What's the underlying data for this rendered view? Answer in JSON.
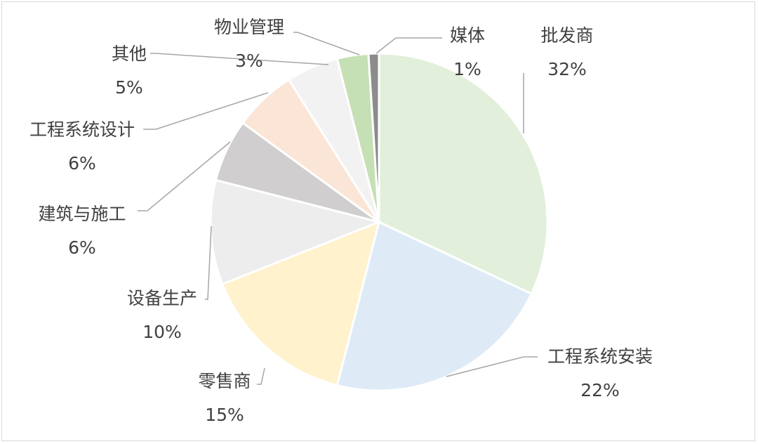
{
  "chart_data": {
    "type": "pie",
    "title": "",
    "slices": [
      {
        "label": "批发商",
        "value": 32,
        "percent_label": "32%",
        "color": "#e2efda"
      },
      {
        "label": "工程系统安装",
        "value": 22,
        "percent_label": "22%",
        "color": "#deebf7"
      },
      {
        "label": "零售商",
        "value": 15,
        "percent_label": "15%",
        "color": "#fff2cc"
      },
      {
        "label": "设备生产",
        "value": 10,
        "percent_label": "10%",
        "color": "#ededed"
      },
      {
        "label": "建筑与施工",
        "value": 6,
        "percent_label": "6%",
        "color": "#d0cece"
      },
      {
        "label": "工程系统设计",
        "value": 6,
        "percent_label": "6%",
        "color": "#fbe5d6"
      },
      {
        "label": "其他",
        "value": 5,
        "percent_label": "5%",
        "color": "#f2f2f2"
      },
      {
        "label": "物业管理",
        "value": 3,
        "percent_label": "3%",
        "color": "#c5e0b4"
      },
      {
        "label": "媒体",
        "value": 1,
        "percent_label": "1%",
        "color": "#8c8c8c"
      }
    ],
    "legend": "none",
    "data_labels": "outside with leader lines"
  }
}
